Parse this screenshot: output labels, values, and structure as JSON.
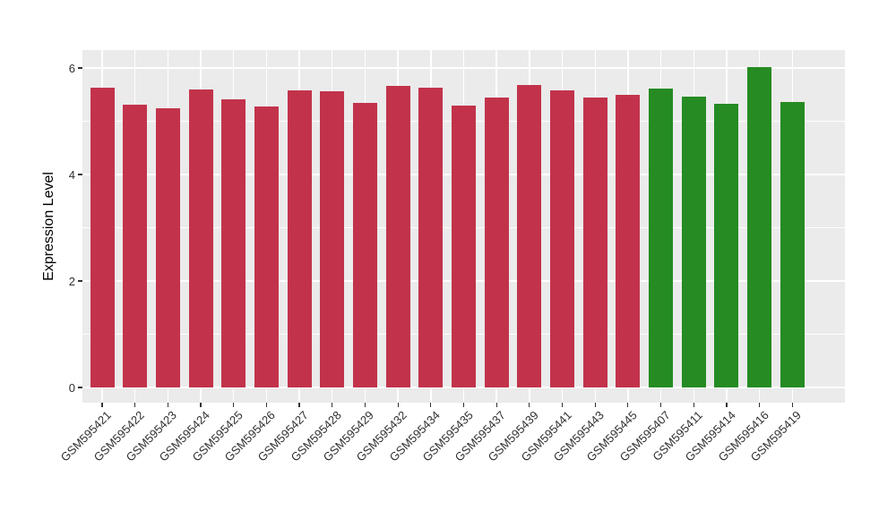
{
  "palette": {
    "red_bar": "#C2334B",
    "green_bar": "#258B22",
    "panel_background": "#EBEBEB",
    "gridline": "#FFFFFF",
    "axis_text": "#303030",
    "axis_title": "#000000",
    "page_background": "#FFFFFF"
  },
  "chart_data": {
    "type": "bar",
    "ylabel": "Expression Level",
    "xlabel": "",
    "ylim": [
      0,
      6.34
    ],
    "yticks": [
      0,
      2,
      4,
      6
    ],
    "yminor": [
      1,
      3,
      5
    ],
    "grid": "white major+minor horizontal lines and white vertical lines at bar centers on grey panel",
    "legend": "none",
    "bar_width_fraction": 0.7,
    "x_label_angle": 45,
    "categories": [
      "GSM595421",
      "GSM595422",
      "GSM595423",
      "GSM595424",
      "GSM595425",
      "GSM595426",
      "GSM595427",
      "GSM595428",
      "GSM595429",
      "GSM595432",
      "GSM595434",
      "GSM595435",
      "GSM595437",
      "GSM595439",
      "GSM595441",
      "GSM595443",
      "GSM595445",
      "GSM595407",
      "GSM595411",
      "GSM595414",
      "GSM595416",
      "GSM595419"
    ],
    "values": [
      5.63,
      5.31,
      5.24,
      5.6,
      5.42,
      5.28,
      5.58,
      5.57,
      5.34,
      5.67,
      5.63,
      5.29,
      5.44,
      5.68,
      5.58,
      5.44,
      5.5,
      5.61,
      5.46,
      5.33,
      6.02,
      5.36
    ],
    "point_colors": [
      "red",
      "red",
      "red",
      "red",
      "red",
      "red",
      "red",
      "red",
      "red",
      "red",
      "red",
      "red",
      "red",
      "red",
      "red",
      "red",
      "red",
      "green",
      "green",
      "green",
      "green",
      "green"
    ]
  }
}
